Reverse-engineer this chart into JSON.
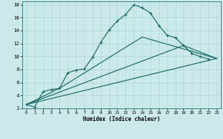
{
  "title": "",
  "xlabel": "Humidex (Indice chaleur)",
  "ylabel": "",
  "bg_color": "#cce9e9",
  "grid_color": "#b0d8d8",
  "line_color": "#1a6b6b",
  "xlim": [
    -0.5,
    23.5
  ],
  "ylim": [
    2,
    18.5
  ],
  "xticks": [
    0,
    1,
    2,
    3,
    4,
    5,
    6,
    7,
    8,
    9,
    10,
    11,
    12,
    13,
    14,
    15,
    16,
    17,
    18,
    19,
    20,
    21,
    22,
    23
  ],
  "yticks": [
    2,
    4,
    6,
    8,
    10,
    12,
    14,
    16,
    18
  ],
  "series": [
    {
      "x": [
        0,
        1,
        2,
        3,
        4,
        5,
        6,
        7,
        8,
        9,
        10,
        11,
        12,
        13,
        14,
        15,
        16,
        17,
        18,
        19,
        20,
        21,
        22
      ],
      "y": [
        2.6,
        2.2,
        4.6,
        4.9,
        5.1,
        7.5,
        7.9,
        8.1,
        9.9,
        12.2,
        14.1,
        15.5,
        16.5,
        18.0,
        17.5,
        16.7,
        14.8,
        13.3,
        12.9,
        11.7,
        10.5,
        10.0,
        9.6
      ],
      "marker": true
    },
    {
      "x": [
        0,
        23
      ],
      "y": [
        2.6,
        9.7
      ],
      "marker": false
    },
    {
      "x": [
        0,
        19,
        23
      ],
      "y": [
        2.6,
        11.7,
        9.7
      ],
      "marker": false
    },
    {
      "x": [
        0,
        4,
        14,
        23
      ],
      "y": [
        2.6,
        5.1,
        13.0,
        9.7
      ],
      "marker": false
    }
  ]
}
